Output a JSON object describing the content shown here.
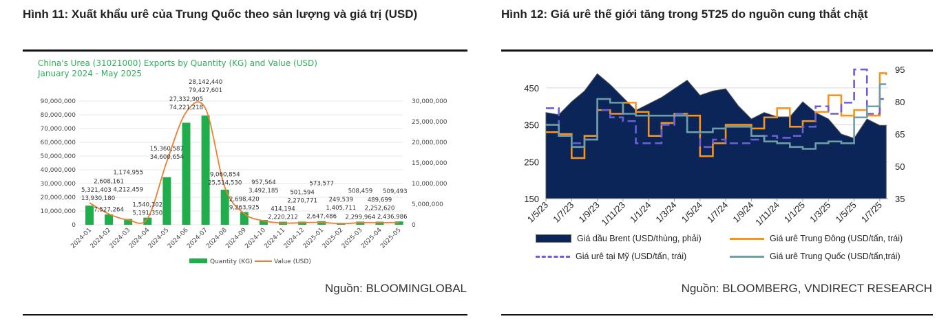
{
  "left": {
    "title": "Hình 11: Xuất khẩu urê của Trung Quốc theo sản lượng và giá trị (USD)",
    "source": "Nguồn: BLOOMINGLOBAL"
  },
  "right": {
    "title": "Hình 12: Giá urê thế giới tăng trong 5T25 do nguồn cung thắt chặt",
    "source": "Nguồn: BLOOMBERG, VNDIRECT RESEARCH"
  },
  "chart_data": [
    {
      "type": "bar",
      "title": "China's Urea (31021000) Exports by Quantity (KG) and Value (USD)",
      "subtitle": "January 2024 - May 2025",
      "watermark": "Blooming",
      "categories": [
        "2024-01",
        "2024-02",
        "2024-03",
        "2024-04",
        "2024-05",
        "2024-06",
        "2024-07",
        "2024-08",
        "2024-09",
        "2024-10",
        "2024-11",
        "2024-12",
        "2025-01",
        "2025-02",
        "2025-03",
        "2025-04",
        "2025-05"
      ],
      "series": [
        {
          "name": "Quantity (KG)",
          "type": "bar",
          "axis": "left",
          "color": "#1fae4b",
          "values": [
            13930180,
            7527264,
            4212459,
            5191350,
            34600654,
            74221218,
            79427601,
            25514530,
            9263925,
            3492185,
            2220212,
            2270771,
            2647486,
            1405711,
            2299964,
            2252620,
            2436986
          ]
        },
        {
          "name": "Value (USD)",
          "type": "line",
          "axis": "right",
          "color": "#ee7d31",
          "values": [
            5321403,
            2608161,
            1174955,
            1540302,
            15360587,
            27332905,
            28142440,
            9060854,
            2698420,
            957564,
            414194,
            501594,
            573577,
            249539,
            508459,
            489699,
            509493
          ]
        }
      ],
      "ylim_left": [
        0,
        90000000
      ],
      "yticks_left": [
        "0",
        "10,000,000",
        "20,000,000",
        "30,000,000",
        "40,000,000",
        "50,000,000",
        "60,000,000",
        "70,000,000",
        "80,000,000",
        "90,000,000"
      ],
      "ylim_right": [
        0,
        30000000
      ],
      "yticks_right": [
        "0",
        "5,000,000",
        "10,000,000",
        "15,000,000",
        "20,000,000",
        "25,000,000",
        "30,000,000"
      ],
      "legend": "bottom",
      "grid": true
    },
    {
      "type": "line",
      "x_unit": "months since 1/5/23",
      "xticks": [
        "1/5/23",
        "1/7/23",
        "1/9/23",
        "1/11/23",
        "1/1/24",
        "1/3/24",
        "1/5/24",
        "1/7/24",
        "1/9/24",
        "1/11/24",
        "1/1/25",
        "1/3/25",
        "1/5/25",
        "1/7/25"
      ],
      "ylim_left": [
        150,
        500
      ],
      "yticks_left": [
        "150",
        "250",
        "350",
        "450"
      ],
      "ylim_right": [
        35,
        98
      ],
      "yticks_right": [
        "35",
        "50",
        "65",
        "80",
        "95"
      ],
      "x": [
        0,
        1,
        2,
        3,
        4,
        5,
        6,
        7,
        8,
        9,
        10,
        11,
        12,
        13,
        14,
        15,
        16,
        17,
        18,
        19,
        20,
        21,
        22,
        23,
        24,
        25,
        26,
        26.5
      ],
      "series": [
        {
          "name": "Giá dầu Brent (USD/thùng, phải)",
          "type": "area",
          "axis": "right",
          "color": "#0b2559",
          "values": [
            75,
            74,
            80,
            85,
            93,
            88,
            82,
            76,
            79,
            82,
            86,
            90,
            83,
            85,
            86,
            78,
            72,
            75,
            73,
            73,
            80,
            75,
            72,
            65,
            63,
            72,
            69,
            69
          ]
        },
        {
          "name": "Giá urê Trung Đông (USD/tấn, trái)",
          "type": "step",
          "axis": "left",
          "color": "#f7941d",
          "values": [
            330,
            325,
            260,
            320,
            390,
            380,
            410,
            385,
            320,
            355,
            380,
            375,
            265,
            300,
            350,
            350,
            340,
            370,
            395,
            345,
            360,
            385,
            430,
            375,
            390,
            375,
            490,
            485
          ]
        },
        {
          "name": "Giá urê tại Mỹ (USD/tấn, trái)",
          "type": "step-dashed",
          "axis": "left",
          "color": "#6a5fd6",
          "values": [
            395,
            320,
            300,
            310,
            390,
            370,
            360,
            300,
            300,
            350,
            380,
            330,
            290,
            310,
            300,
            300,
            310,
            320,
            315,
            320,
            345,
            400,
            380,
            410,
            500,
            380,
            420,
            420
          ]
        },
        {
          "name": "Giá urê Trung Quốc (USD/tấn,trái)",
          "type": "step",
          "axis": "left",
          "color": "#6e9fa8",
          "values": [
            350,
            320,
            290,
            310,
            420,
            410,
            380,
            375,
            375,
            375,
            375,
            330,
            330,
            340,
            345,
            345,
            320,
            305,
            300,
            290,
            285,
            300,
            305,
            300,
            370,
            400,
            460,
            460
          ]
        }
      ],
      "legend": "bottom",
      "grid": true
    }
  ]
}
